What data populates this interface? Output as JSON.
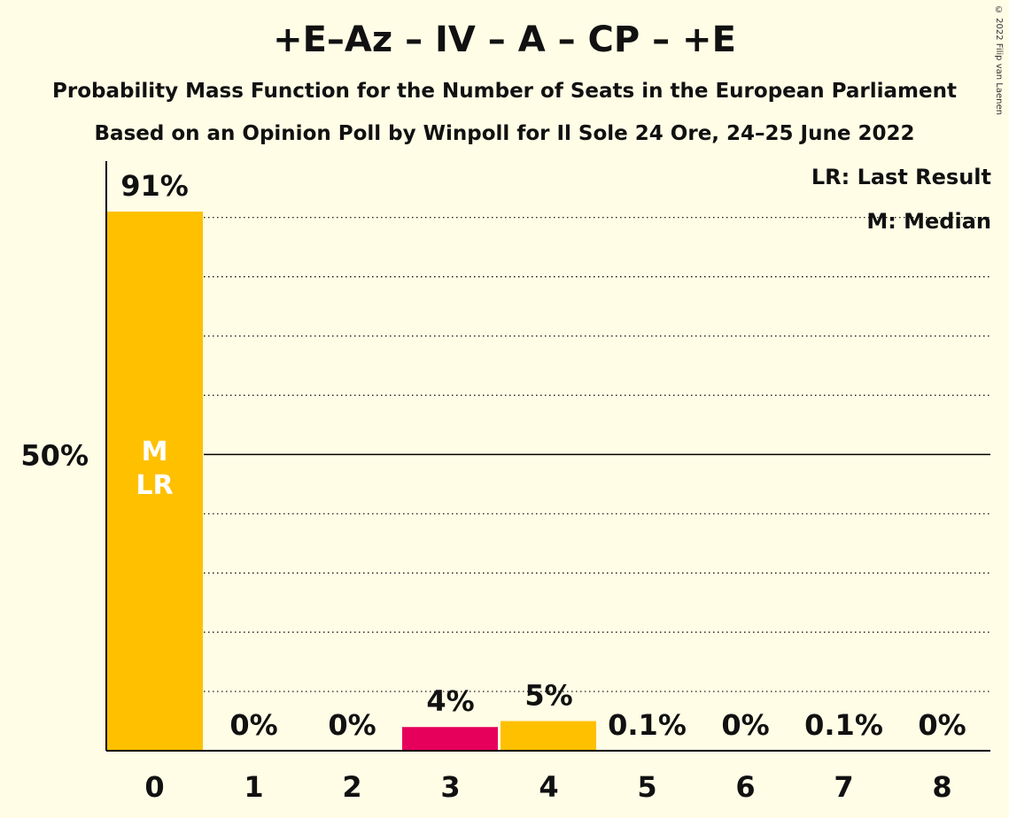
{
  "header": {
    "title": "+E–Az – IV – A – CP – +E",
    "subtitle": "Probability Mass Function for the Number of Seats in the European Parliament",
    "subtitle2": "Based on an Opinion Poll by Winpoll for Il Sole 24 Ore, 24–25 June 2022",
    "copyright": "© 2022 Filip van Laenen"
  },
  "legend": {
    "last_result": "LR: Last Result",
    "median": "M: Median"
  },
  "colors": {
    "bar": "#ffc000",
    "highlight": "#e6005c",
    "background": "#fffde6"
  },
  "chart_data": {
    "type": "bar",
    "categories": [
      "0",
      "1",
      "2",
      "3",
      "4",
      "5",
      "6",
      "7",
      "8"
    ],
    "values": [
      91,
      0,
      0,
      4,
      5,
      0.1,
      0,
      0.1,
      0
    ],
    "labels": [
      "91%",
      "0%",
      "0%",
      "4%",
      "5%",
      "0.1%",
      "0%",
      "0.1%",
      "0%"
    ],
    "bar_colors": [
      "#ffc000",
      "#ffc000",
      "#ffc000",
      "#e6005c",
      "#ffc000",
      "#ffc000",
      "#ffc000",
      "#ffc000",
      "#ffc000"
    ],
    "ylim": [
      0,
      100
    ],
    "yticks": [
      {
        "value": 50,
        "label": "50%"
      }
    ],
    "gridlines": [
      10,
      20,
      30,
      40,
      50,
      60,
      70,
      80,
      90
    ],
    "median_index": 0,
    "last_result_index": 0,
    "bar_annotation": "M\nLR",
    "median_marker": "M",
    "last_result_marker": "LR"
  }
}
